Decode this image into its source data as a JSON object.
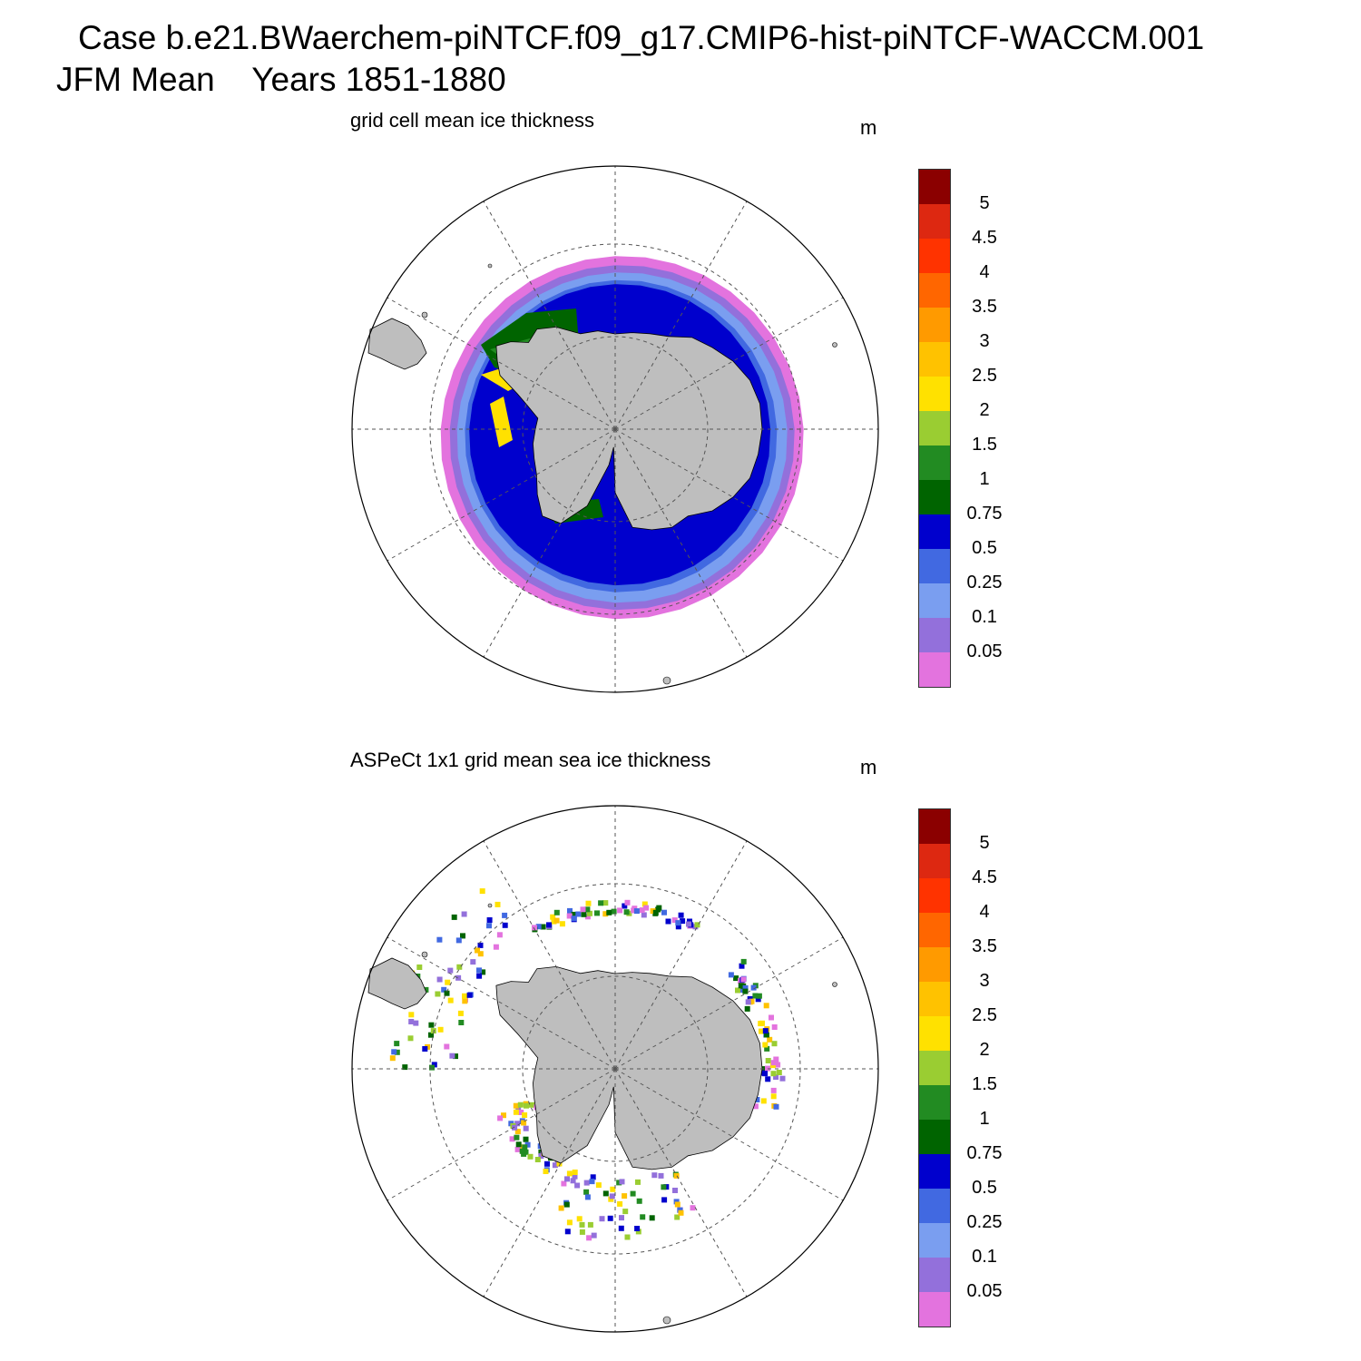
{
  "header": {
    "title_line1": "Case b.e21.BWaerchem-piNTCF.f09_g17.CMIP6-hist-piNTCF-WACCM.001",
    "title_line2": "JFM Mean    Years 1851-1880"
  },
  "colors": {
    "land": "#bebebe",
    "boundary": "#000000",
    "grid": "#555555",
    "levels": [
      "#e373de",
      "#9370db",
      "#7a9ef0",
      "#4169e1",
      "#0000cd",
      "#006400",
      "#228b22",
      "#9acd32",
      "#ffe100",
      "#ffc200",
      "#ff9a00",
      "#ff6600",
      "#ff3300",
      "#dd2811",
      "#8b0000"
    ]
  },
  "chart_data": [
    {
      "type": "contour-map",
      "projection": "south-polar-stereographic",
      "title": "grid cell mean ice thickness",
      "units": "m",
      "colorbar": {
        "levels": [
          0.05,
          0.1,
          0.25,
          0.5,
          0.75,
          1,
          1.5,
          2,
          2.5,
          3,
          3.5,
          4,
          4.5,
          5
        ],
        "labels": [
          "0.05",
          "0.1",
          "0.25",
          "0.5",
          "0.75",
          "1",
          "1.5",
          "2",
          "2.5",
          "3",
          "3.5",
          "4",
          "4.5",
          "5"
        ]
      },
      "description_values": {
        "ice_edge_min_m": 0.0,
        "weddell_sea_max_m": 2.5,
        "ross_sea_typical_m": 0.75
      }
    },
    {
      "type": "gridded-map",
      "projection": "south-polar-stereographic",
      "title": "ASPeCt 1x1 grid mean sea ice thickness",
      "units": "m",
      "colorbar": {
        "levels": [
          0.05,
          0.1,
          0.25,
          0.5,
          0.75,
          1,
          1.5,
          2,
          2.5,
          3,
          3.5,
          4,
          4.5,
          5
        ],
        "labels": [
          "0.05",
          "0.1",
          "0.25",
          "0.5",
          "0.75",
          "1",
          "1.5",
          "2",
          "2.5",
          "3",
          "3.5",
          "4",
          "4.5",
          "5"
        ]
      }
    }
  ],
  "panels": [
    {
      "title": "grid cell mean ice thickness",
      "unit": "m"
    },
    {
      "title": "ASPeCt 1x1 grid mean sea ice thickness",
      "unit": "m"
    }
  ]
}
